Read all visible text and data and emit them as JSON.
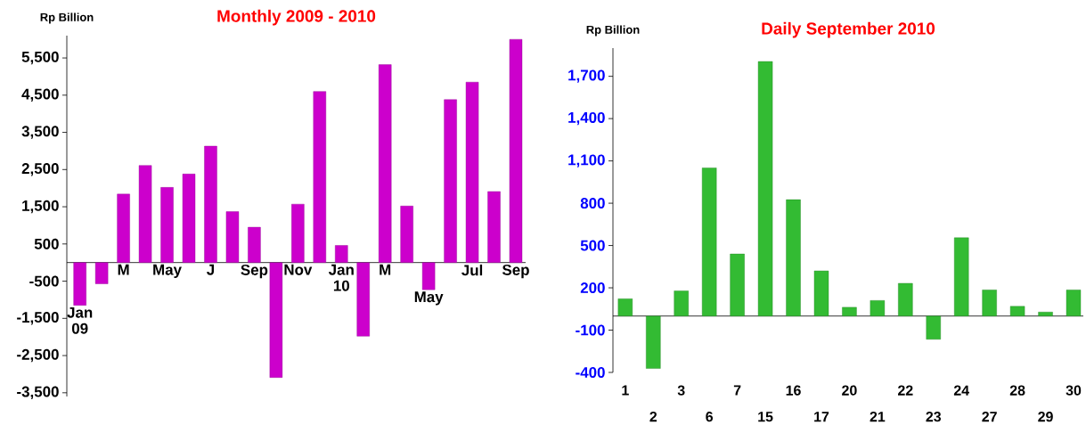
{
  "chart_data": [
    {
      "type": "bar",
      "title": "Monthly 2009 - 2010",
      "ylabel": "Rp Billion",
      "categories": [
        "Jan 09",
        null,
        "M",
        null,
        "May",
        null,
        "J",
        null,
        "Sep",
        null,
        "Nov",
        null,
        "Jan 10",
        null,
        "M",
        null,
        "May",
        null,
        "Jul",
        null,
        "Sep"
      ],
      "values": [
        -1150,
        -570,
        1840,
        2610,
        2020,
        2380,
        3130,
        1370,
        950,
        -3090,
        1570,
        4600,
        460,
        -1980,
        5320,
        1520,
        -730,
        4380,
        4850,
        1910,
        6000
      ],
      "color": "#cc00cc",
      "ylim": [
        -3600,
        6100
      ],
      "yticks": [
        {
          "value": -3500,
          "label": "-3,500"
        },
        {
          "value": -2500,
          "label": "-2,500"
        },
        {
          "value": -1500,
          "label": "-1,500"
        },
        -500,
        500,
        {
          "value": 1500,
          "label": "1,500"
        },
        {
          "value": 2500,
          "label": "2,500"
        },
        {
          "value": 3500,
          "label": "3,500"
        },
        {
          "value": 4500,
          "label": "4,500"
        },
        {
          "value": 5500,
          "label": "5,500"
        }
      ],
      "grid": false
    },
    {
      "type": "bar",
      "title": "Daily September 2010",
      "ylabel": "Rp Billion",
      "categories": [
        "1",
        "2",
        "3",
        "6",
        "7",
        "15",
        "16",
        "17",
        "20",
        "21",
        "22",
        "23",
        "24",
        "27",
        "28",
        "29",
        "30"
      ],
      "values": [
        122,
        -372,
        178,
        1050,
        440,
        1805,
        825,
        320,
        62,
        110,
        232,
        -165,
        555,
        185,
        69,
        28,
        185
      ],
      "color": "#33bb33",
      "ylim": [
        -400,
        1900
      ],
      "yticks": [
        -400,
        -100,
        200,
        500,
        800,
        {
          "value": 1100,
          "label": "1,100"
        },
        {
          "value": 1400,
          "label": "1,400"
        },
        {
          "value": 1700,
          "label": "1,700"
        }
      ],
      "grid": false
    }
  ]
}
